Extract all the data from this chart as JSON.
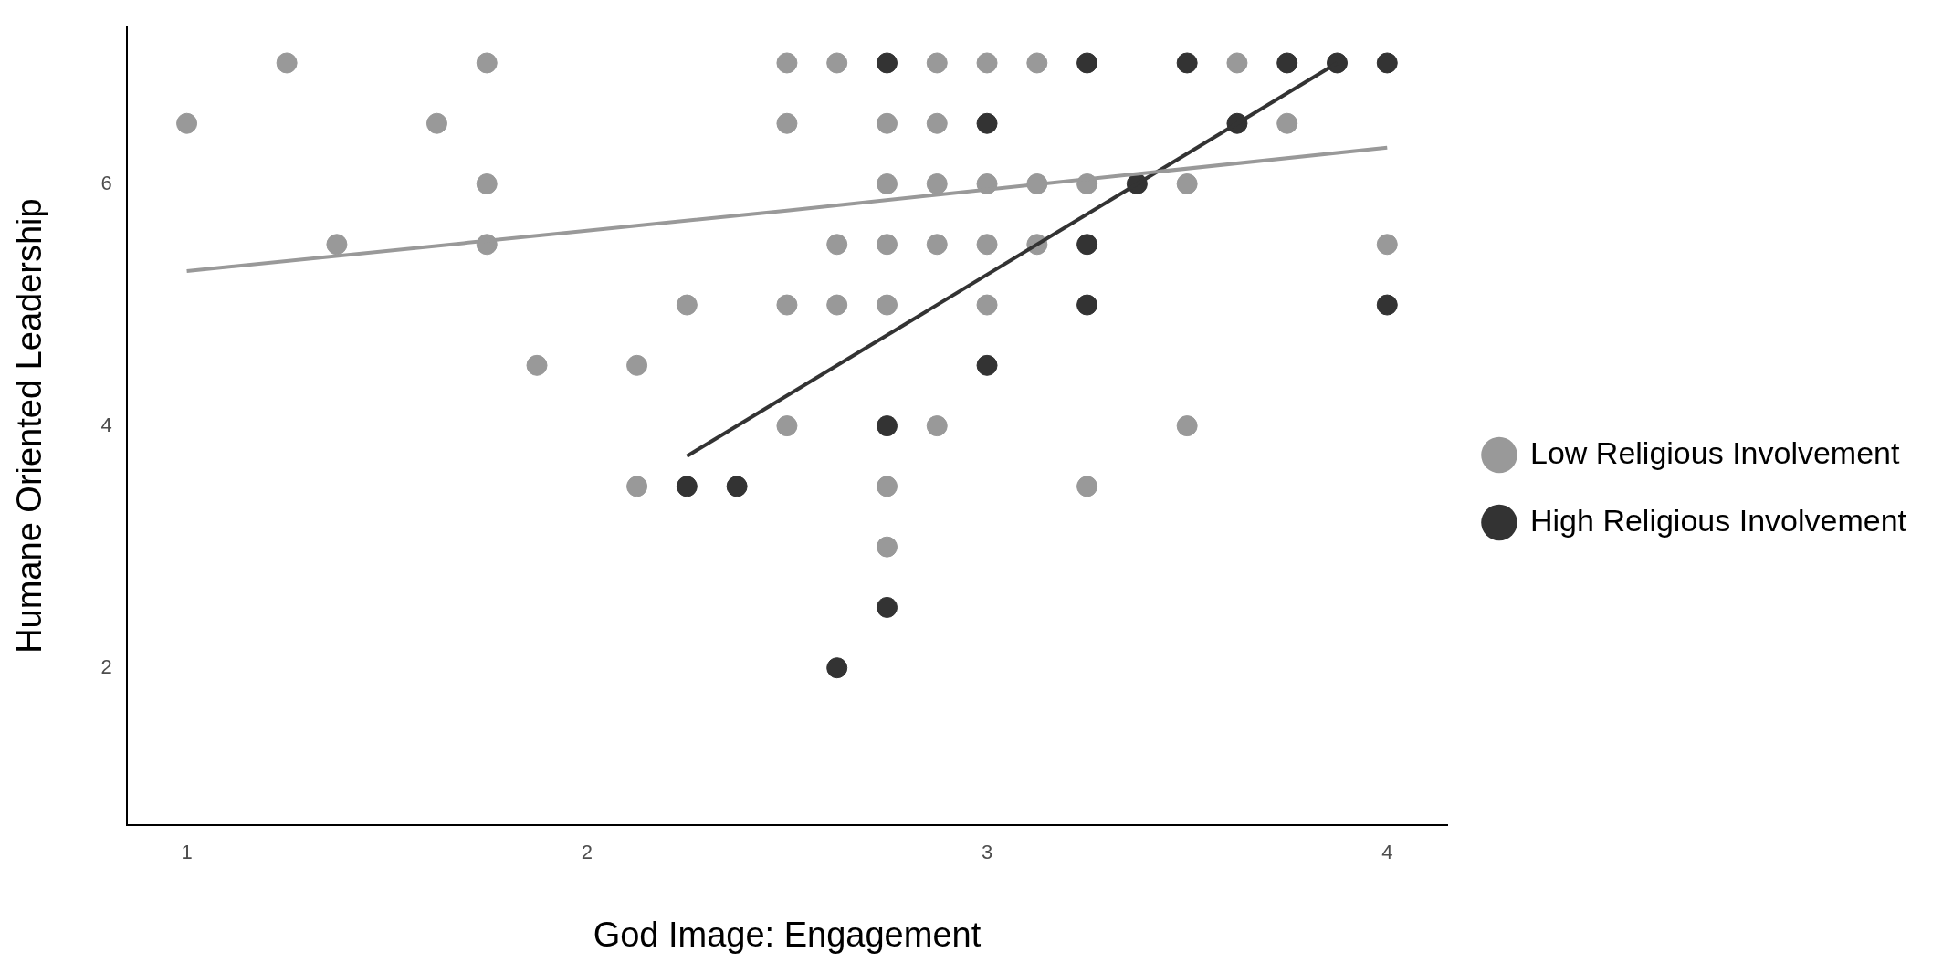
{
  "chart_data": {
    "type": "scatter",
    "xlabel": "God Image: Engagement",
    "ylabel": "Humane Oriented Leadership",
    "xlim": [
      0.85,
      4.15
    ],
    "xticks": [
      1,
      2,
      3,
      4
    ],
    "ylim": [
      0.7,
      7.3
    ],
    "yticks": [
      2,
      4,
      6
    ],
    "grid": false,
    "legend": "right",
    "marker": "circle",
    "series": [
      {
        "name": "Low Religious Involvement",
        "color": "#999999",
        "x": [
          1,
          1.25,
          1.375,
          1.625,
          1.75,
          1.75,
          1.75,
          1.875,
          2.125,
          2.125,
          2.25,
          2.5,
          2.5,
          2.5,
          2.5,
          2.625,
          2.625,
          2.625,
          2.75,
          2.75,
          2.75,
          2.75,
          2.75,
          2.75,
          2.875,
          2.875,
          2.875,
          2.875,
          2.875,
          3,
          3,
          3,
          3,
          3.125,
          3.125,
          3.125,
          3.25,
          3.25,
          3.5,
          3.5,
          3.625,
          3.75,
          4
        ],
        "values": [
          6.5,
          7,
          5.5,
          6.5,
          7,
          6,
          5.5,
          4.5,
          4.5,
          3.5,
          5,
          7,
          6.5,
          5,
          4,
          7,
          5.5,
          5,
          6.5,
          6,
          5.5,
          5,
          3.5,
          3,
          7,
          6.5,
          6,
          5.5,
          4,
          7,
          6,
          5.5,
          5,
          7,
          6,
          5.5,
          6,
          3.5,
          6,
          4,
          7,
          6.5,
          5.5
        ]
      },
      {
        "name": "High Religious Involvement",
        "color": "#333333",
        "x": [
          2.25,
          2.375,
          2.625,
          2.75,
          2.75,
          2.75,
          3,
          3,
          3.25,
          3.25,
          3.25,
          3.375,
          3.5,
          3.625,
          3.75,
          3.875,
          4,
          4
        ],
        "values": [
          3.5,
          3.5,
          2,
          7,
          4,
          2.5,
          6.5,
          4.5,
          7,
          5.5,
          5,
          6,
          7,
          6.5,
          7,
          7,
          7,
          5
        ]
      },
      {
        "type": "line",
        "color": "#999999",
        "marker": "none",
        "line_style": "solid",
        "x": [
          1,
          2.5,
          4
        ],
        "values": [
          5.28,
          5.78,
          6.3
        ]
      },
      {
        "type": "line",
        "color": "#333333",
        "marker": "none",
        "line_style": "solid",
        "x": [
          2.25,
          3.875
        ],
        "values": [
          3.75,
          7
        ]
      }
    ]
  }
}
